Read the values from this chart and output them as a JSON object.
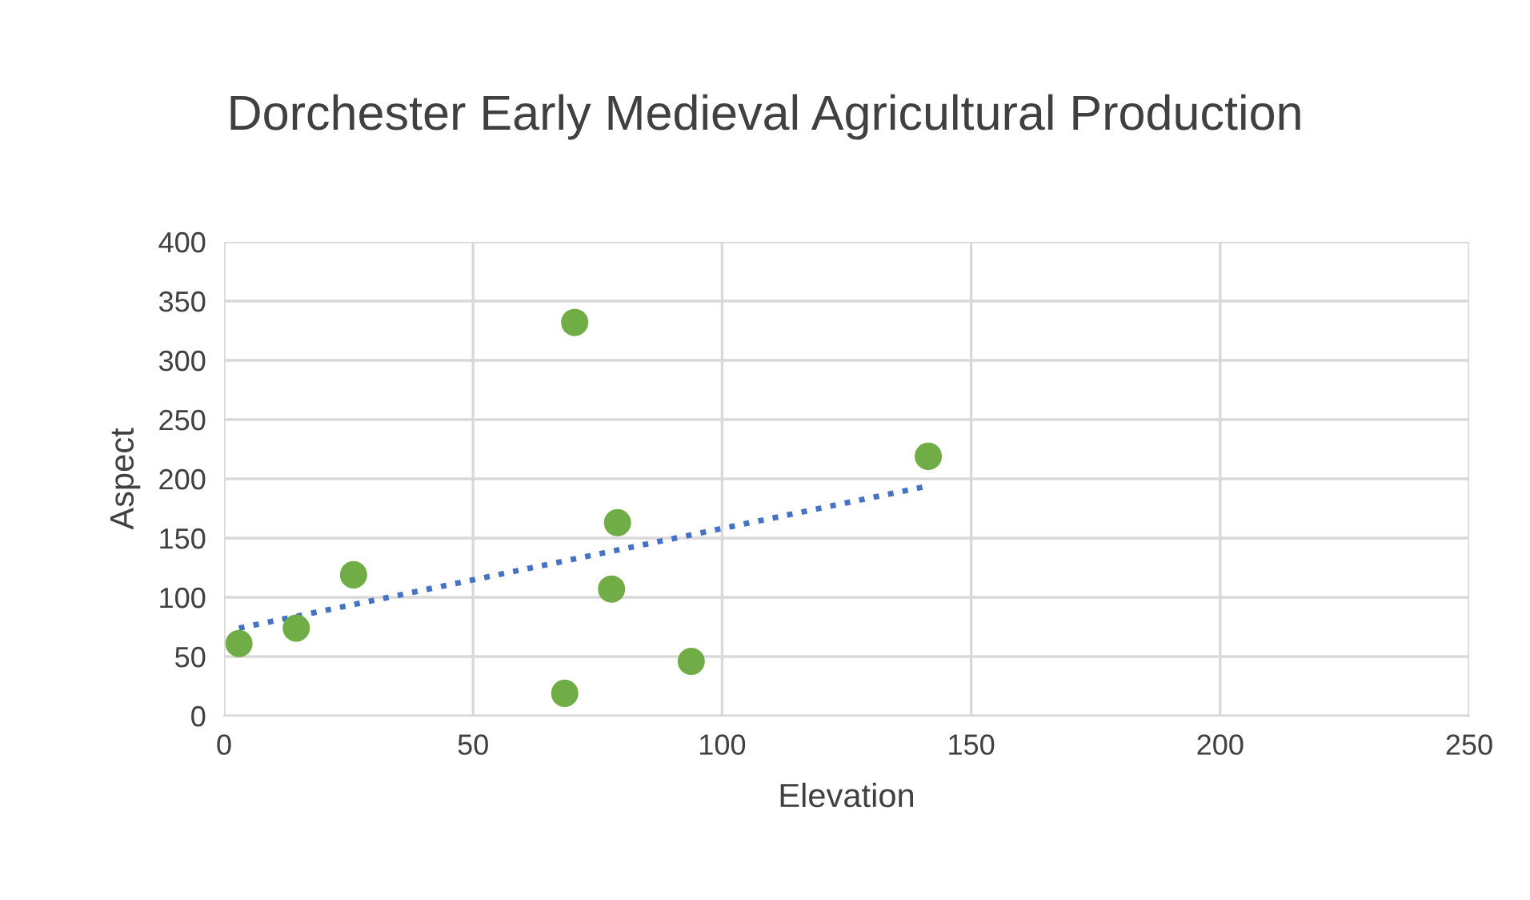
{
  "chart_data": {
    "type": "scatter",
    "title": "Dorchester Early Medieval Agricultural Production",
    "xlabel": "Elevation",
    "ylabel": "Aspect",
    "series": [
      {
        "color": "#70ad47",
        "marker": "circle",
        "x": [
          3,
          14.5,
          26,
          70.4,
          68.4,
          79,
          77.8,
          93.8,
          141.4
        ],
        "values": [
          61,
          74,
          119,
          332,
          19,
          163,
          107,
          46,
          219
        ]
      },
      {
        "type": "line",
        "color": "#4472c4",
        "line_style": "dotted",
        "marker": "none",
        "x": [
          3,
          141.4
        ],
        "values": [
          74,
          194
        ]
      }
    ],
    "xlim": [
      0,
      250
    ],
    "xticks": [
      0,
      50,
      100,
      150,
      200,
      250
    ],
    "ylim": [
      0,
      400
    ],
    "yticks": [
      0,
      50,
      100,
      150,
      200,
      250,
      300,
      350,
      400
    ],
    "grid": true
  }
}
